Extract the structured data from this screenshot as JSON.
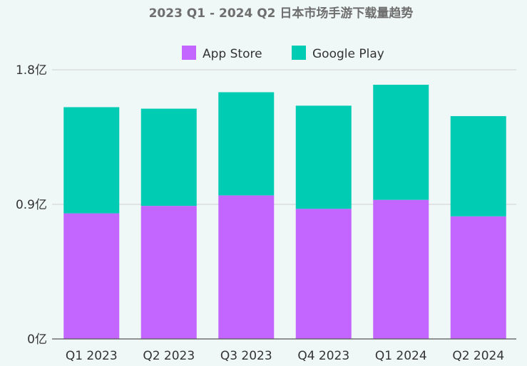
{
  "chart_data": {
    "type": "bar",
    "stacked": true,
    "title": "2023 Q1 - 2024 Q2 日本市场手游下载量趋势",
    "categories": [
      "Q1 2023",
      "Q2 2023",
      "Q3 2023",
      "Q4 2023",
      "Q1 2024",
      "Q2 2024"
    ],
    "series": [
      {
        "name": "App Store",
        "color": "#c266ff",
        "values": [
          0.84,
          0.89,
          0.96,
          0.87,
          0.93,
          0.82
        ]
      },
      {
        "name": "Google Play",
        "color": "#00ccb4",
        "values": [
          0.71,
          0.65,
          0.69,
          0.69,
          0.77,
          0.67
        ]
      }
    ],
    "y_ticks": [
      {
        "value": 0,
        "label": "0亿"
      },
      {
        "value": 0.9,
        "label": "0.9亿"
      },
      {
        "value": 1.8,
        "label": "1.8亿"
      }
    ],
    "ylim": [
      0,
      1.8
    ],
    "xlabel": "",
    "ylabel": "",
    "grid": true,
    "legend_position": "top-center"
  }
}
